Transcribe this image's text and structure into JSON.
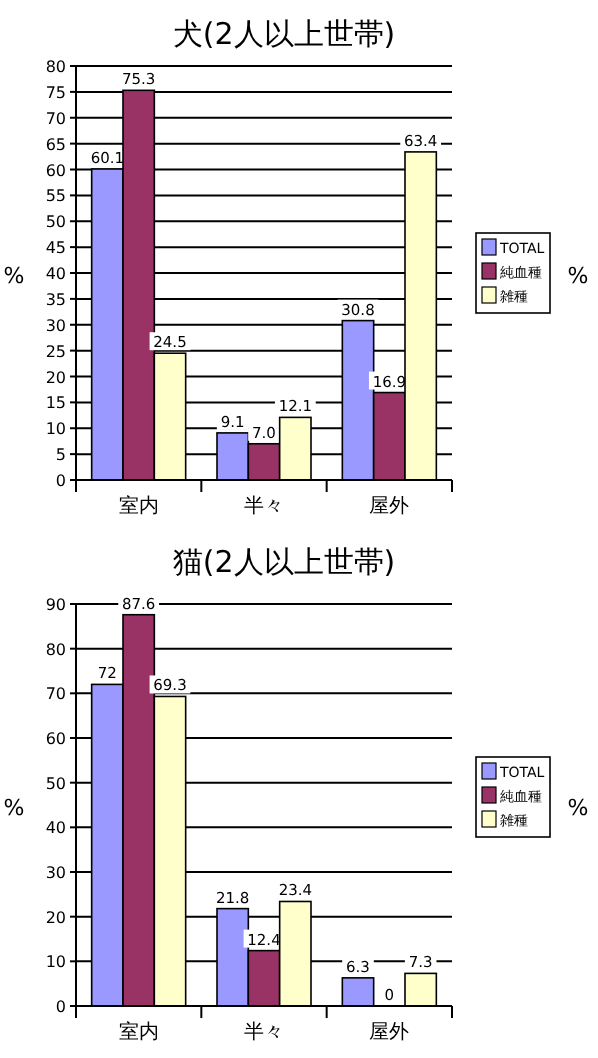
{
  "chart_data": [
    {
      "type": "bar",
      "title": "犬(2人以上世帯)",
      "ylabel": "%",
      "annotations": [
        "%"
      ],
      "categories": [
        "室内",
        "半々",
        "屋外"
      ],
      "ylim": [
        0,
        80
      ],
      "yticks": [
        0,
        5,
        10,
        15,
        20,
        25,
        30,
        35,
        40,
        45,
        50,
        55,
        60,
        65,
        70,
        75,
        80
      ],
      "grid": "y",
      "legend": "right",
      "series": [
        {
          "name": "TOTAL",
          "color": "#9999ff",
          "values": [
            60.1,
            9.1,
            30.8
          ],
          "value_labels": [
            "60.1",
            "9.1",
            "30.8"
          ]
        },
        {
          "name": "純血種",
          "color": "#993366",
          "values": [
            75.3,
            7.0,
            16.9
          ],
          "value_labels": [
            "75.3",
            "7.0",
            "16.9"
          ]
        },
        {
          "name": "雑種",
          "color": "#ffffcc",
          "values": [
            24.5,
            12.1,
            63.4
          ],
          "value_labels": [
            "24.5",
            "12.1",
            "63.4"
          ]
        }
      ]
    },
    {
      "type": "bar",
      "title": "猫(2人以上世帯)",
      "ylabel": "%",
      "annotations": [
        "%"
      ],
      "categories": [
        "室内",
        "半々",
        "屋外"
      ],
      "ylim": [
        0,
        90
      ],
      "yticks": [
        0,
        10,
        20,
        30,
        40,
        50,
        60,
        70,
        80,
        90
      ],
      "grid": "y",
      "legend": "right",
      "series": [
        {
          "name": "TOTAL",
          "color": "#9999ff",
          "values": [
            72,
            21.8,
            6.3
          ],
          "value_labels": [
            "72",
            "21.8",
            "6.3"
          ]
        },
        {
          "name": "純血種",
          "color": "#993366",
          "values": [
            87.6,
            12.4,
            0
          ],
          "value_labels": [
            "87.6",
            "12.4",
            "0"
          ]
        },
        {
          "name": "雑種",
          "color": "#ffffcc",
          "values": [
            69.3,
            23.4,
            7.3
          ],
          "value_labels": [
            "69.3",
            "23.4",
            "7.3"
          ]
        }
      ]
    }
  ]
}
